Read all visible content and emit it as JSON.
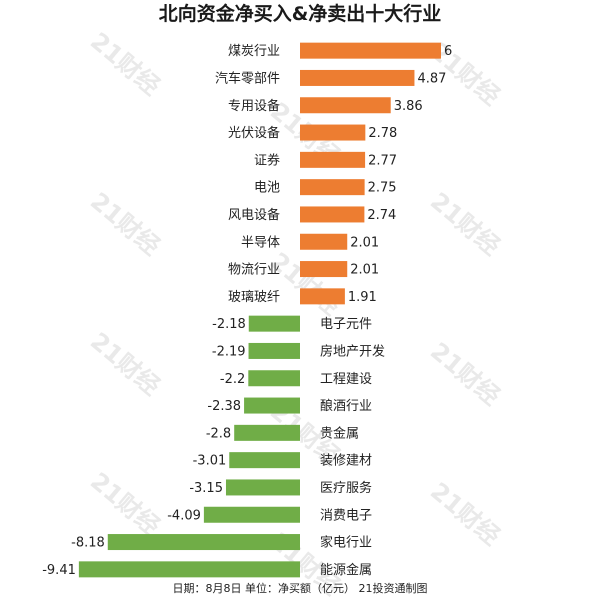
{
  "chart_data": {
    "type": "bar",
    "orientation": "horizontal",
    "title": "北向资金净买入&净卖出十大行业",
    "categories": [
      "煤炭行业",
      "汽车零部件",
      "专用设备",
      "光伏设备",
      "证券",
      "电池",
      "风电设备",
      "半导体",
      "物流行业",
      "玻璃玻纤",
      "电子元件",
      "房地产开发",
      "工程建设",
      "酿酒行业",
      "贵金属",
      "装修建材",
      "医疗服务",
      "消费电子",
      "家电行业",
      "能源金属"
    ],
    "values": [
      6,
      4.87,
      3.86,
      2.78,
      2.77,
      2.75,
      2.74,
      2.01,
      2.01,
      1.91,
      -2.18,
      -2.19,
      -2.2,
      -2.38,
      -2.8,
      -3.01,
      -3.15,
      -4.09,
      -8.18,
      -9.41
    ],
    "value_labels": [
      "6",
      "4.87",
      "3.86",
      "2.78",
      "2.77",
      "2.75",
      "2.74",
      "2.01",
      "2.01",
      "1.91",
      "-2.18",
      "-2.19",
      "-2.2",
      "-2.38",
      "-2.8",
      "-3.01",
      "-3.15",
      "-4.09",
      "-8.18",
      "-9.41"
    ],
    "xlim": [
      -9.41,
      6
    ],
    "colors": {
      "positive": "#ED7D31",
      "negative": "#70AD47"
    },
    "grid": false,
    "footer": "日期：8月8日 单位：净买额（亿元） 21投资通制图",
    "watermark": "21财经"
  }
}
